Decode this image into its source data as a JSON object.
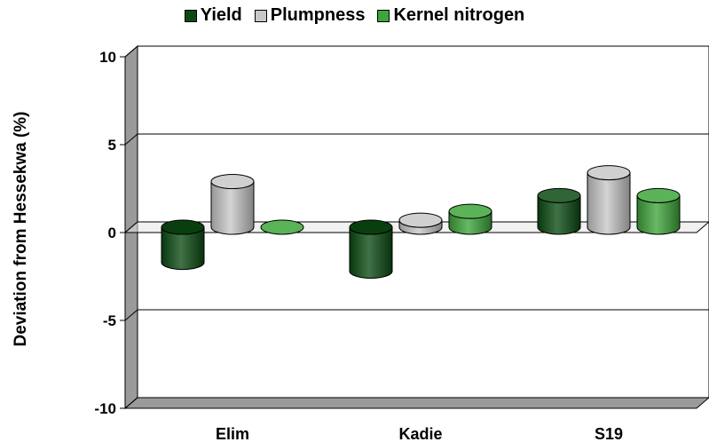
{
  "chart_data": {
    "type": "bar",
    "style": "3d-cylinder",
    "title": "",
    "xlabel": "",
    "ylabel": "Deviation from Hessekwa (%)",
    "categories": [
      "Elim",
      "Kadie",
      "S19"
    ],
    "series": [
      {
        "name": "Yield",
        "color": "#0b4a12",
        "values": [
          -2.0,
          -2.5,
          1.8
        ]
      },
      {
        "name": "Plumpness",
        "color": "#c8c8c8",
        "values": [
          2.6,
          0.4,
          3.1
        ]
      },
      {
        "name": "Kernel nitrogen",
        "color": "#3ea53a",
        "values": [
          0.0,
          0.9,
          1.8
        ]
      }
    ],
    "ylim": [
      -10,
      10
    ],
    "yticks": [
      -10,
      -5,
      0,
      5,
      10
    ],
    "grid": true,
    "legend_position": "top"
  }
}
